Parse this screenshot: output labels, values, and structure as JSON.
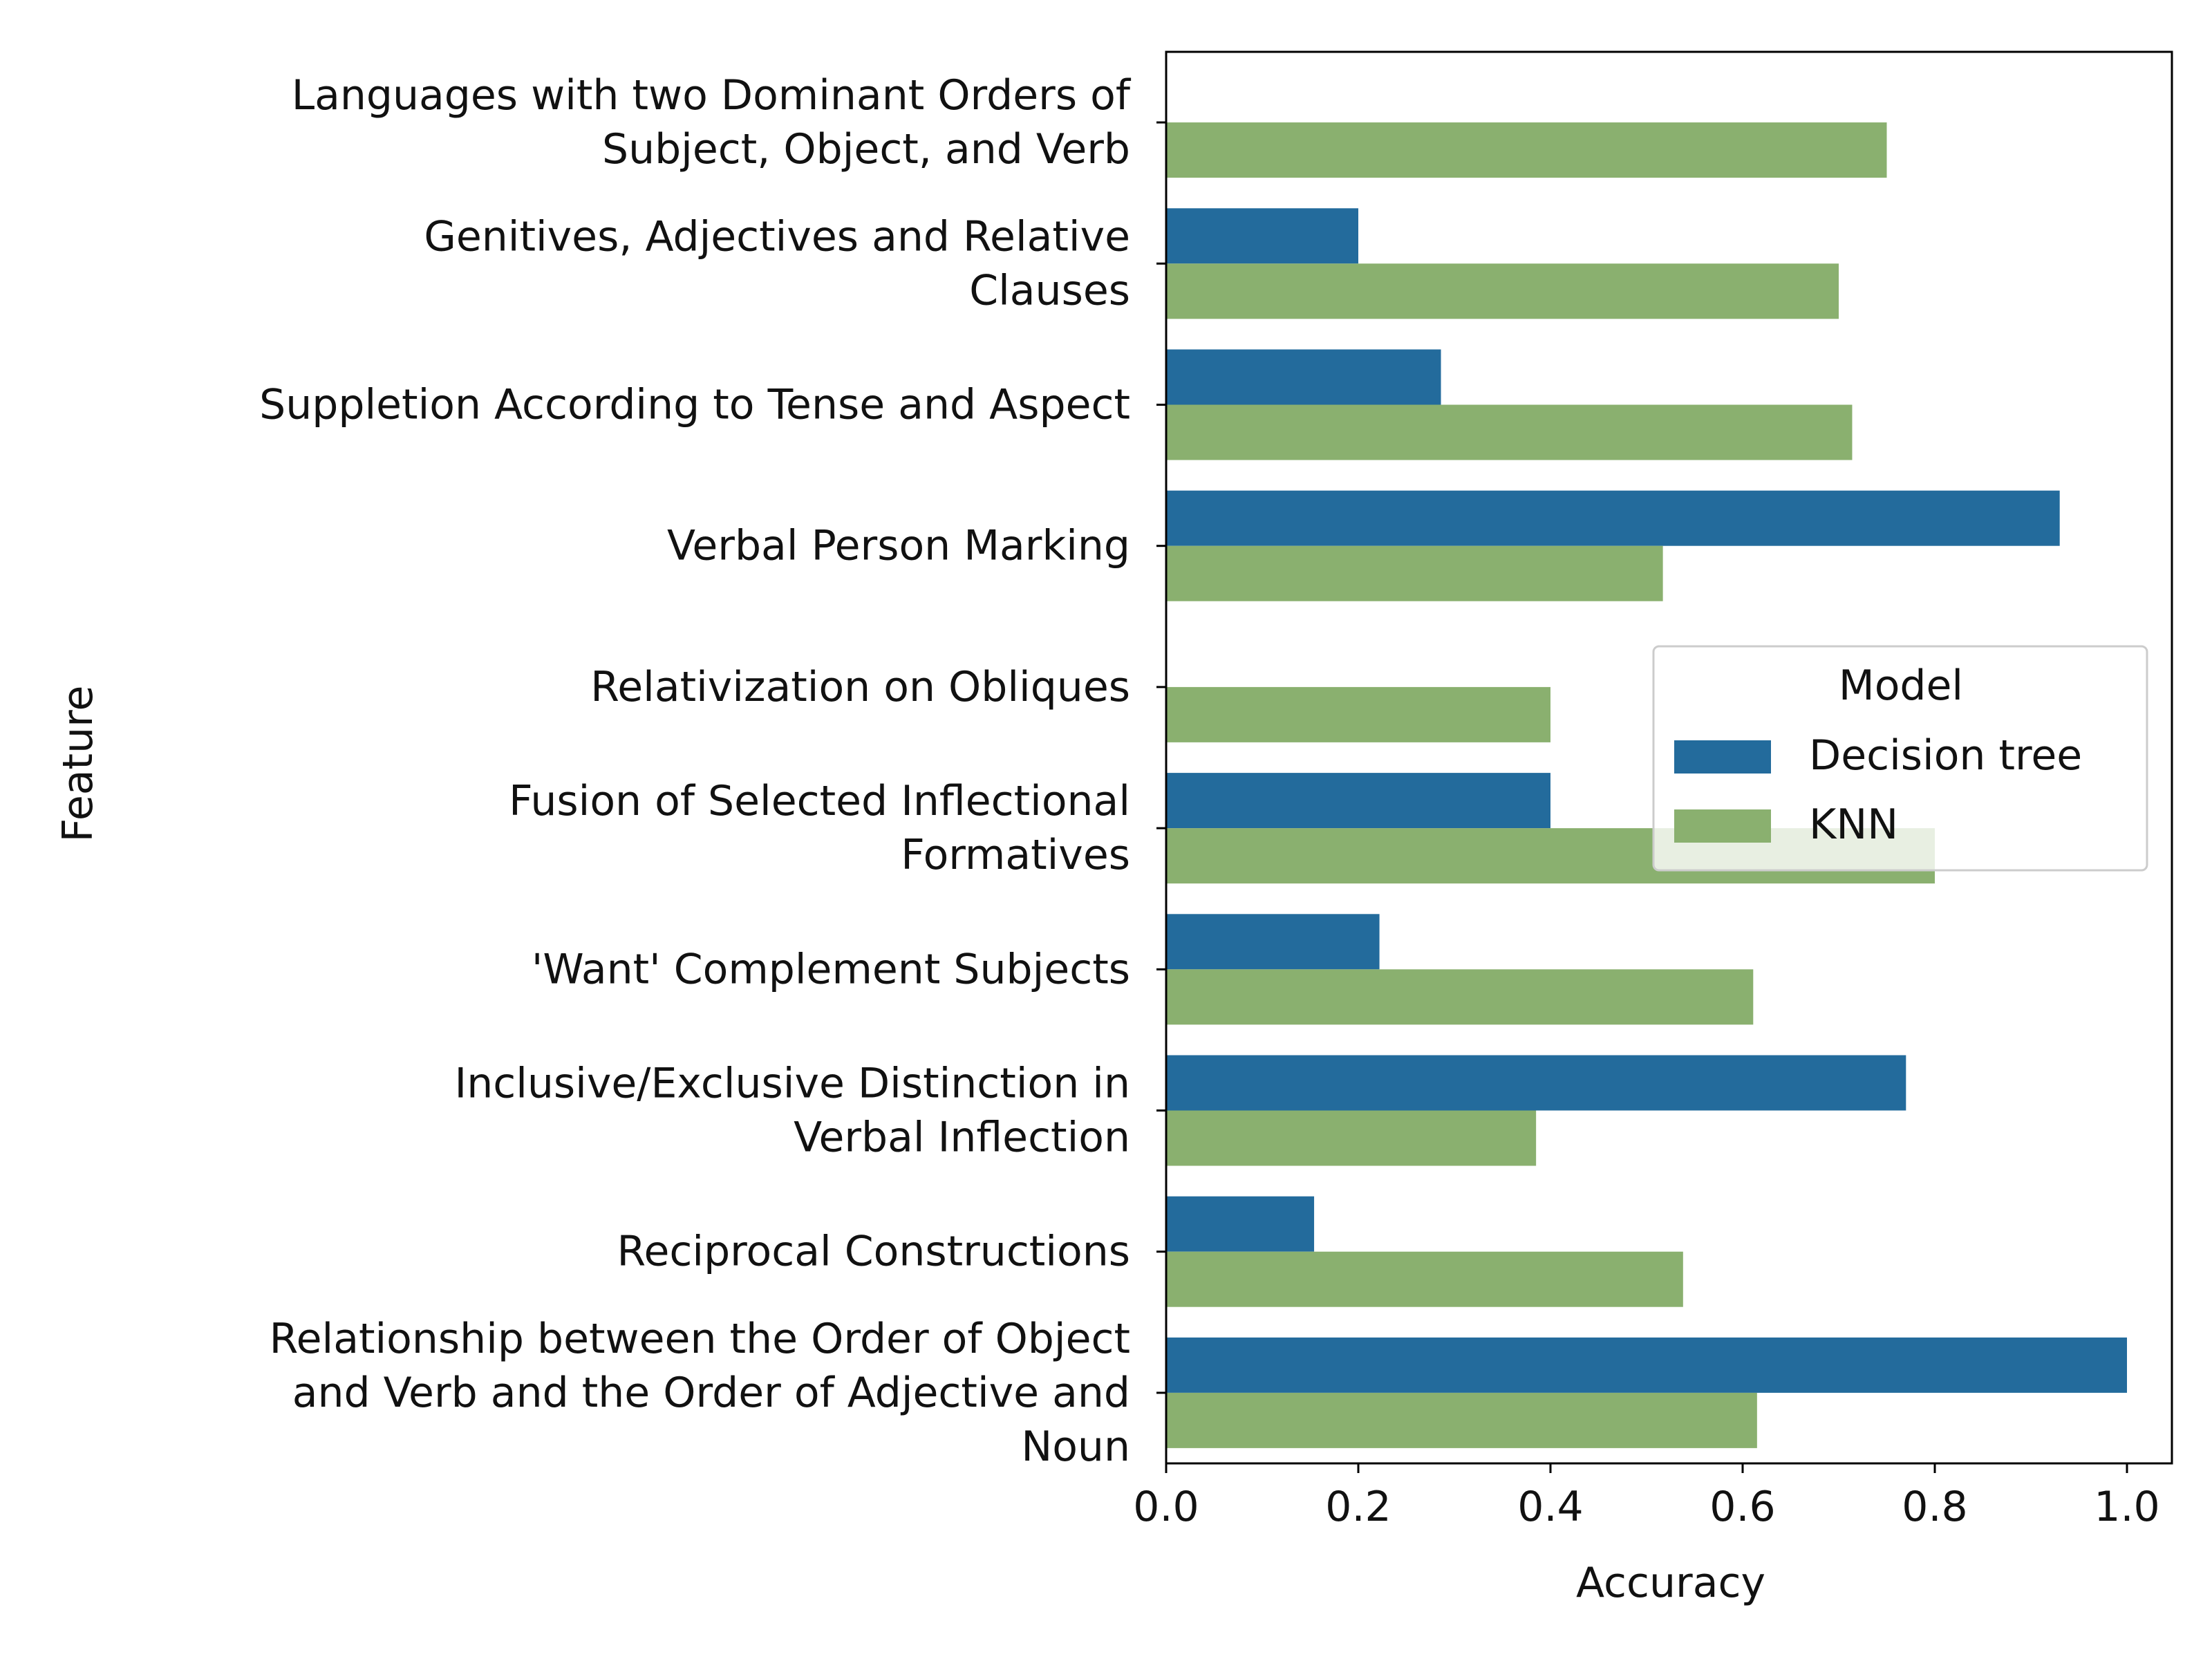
{
  "chart_data": {
    "type": "bar",
    "orientation": "horizontal",
    "title": "",
    "xlabel": "Accuracy",
    "ylabel": "Feature",
    "xlim": [
      0,
      1.05
    ],
    "xticks": [
      "0.0",
      "0.2",
      "0.4",
      "0.6",
      "0.8",
      "1.0"
    ],
    "grid": false,
    "categories": [
      "Languages with two Dominant Orders of\nSubject, Object, and Verb",
      "Genitives, Adjectives and Relative\nClauses",
      "Suppletion According to Tense and Aspect",
      "Verbal Person Marking",
      "Relativization on Obliques",
      "Fusion of Selected Inflectional\nFormatives",
      "'Want' Complement Subjects",
      "Inclusive/Exclusive Distinction in\nVerbal Inflection",
      "Reciprocal Constructions",
      "Relationship between the Order of Object\nand Verb and the Order of Adjective and\nNoun"
    ],
    "series": [
      {
        "name": "Decision tree",
        "color": "#236b9c",
        "values": [
          0.0,
          0.2,
          0.286,
          0.93,
          0.0,
          0.4,
          0.222,
          0.77,
          0.154,
          1.0
        ]
      },
      {
        "name": "KNN",
        "color": "#8ab06f",
        "values": [
          0.75,
          0.7,
          0.714,
          0.517,
          0.4,
          0.8,
          0.611,
          0.385,
          0.538,
          0.615
        ]
      }
    ],
    "legend": {
      "title": "Model",
      "placement": "center-right"
    }
  }
}
